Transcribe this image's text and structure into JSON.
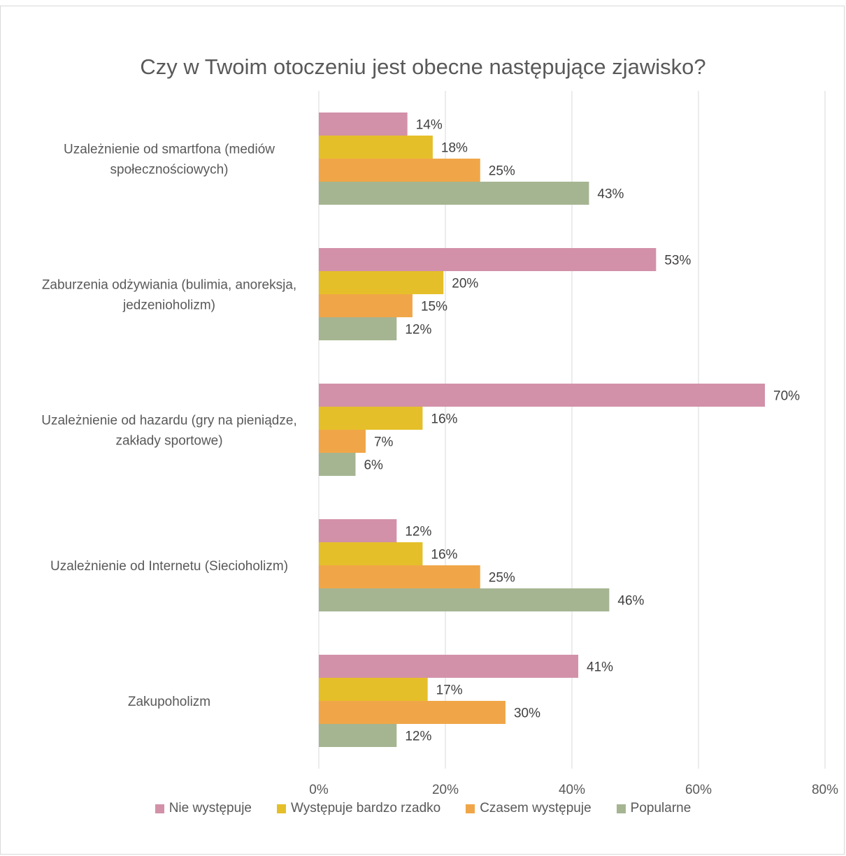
{
  "chart_data": {
    "type": "bar",
    "orientation": "horizontal",
    "title": "Czy w Twoim otoczeniu jest obecne następujące zjawisko?",
    "xlabel": "",
    "ylabel": "",
    "xlim": [
      0,
      0.8
    ],
    "x_ticks": [
      0,
      0.2,
      0.4,
      0.6,
      0.8
    ],
    "x_tick_labels": [
      "0%",
      "20%",
      "40%",
      "60%",
      "80%"
    ],
    "grid": true,
    "legend_position": "bottom",
    "categories": [
      [
        "Uzależnienie od smartfona (mediów",
        "społecznościowych)"
      ],
      [
        "Zaburzenia odżywiania (bulimia, anoreksja,",
        "jedzenioholizm)"
      ],
      [
        "Uzależnienie od hazardu (gry na pieniądze,",
        "zakłady sportowe)"
      ],
      [
        "Uzależnienie od Internetu (Siecioholizm)"
      ],
      [
        "Zakupoholizm"
      ]
    ],
    "series": [
      {
        "name": "Nie występuje",
        "color": "#d291a8",
        "values": [
          0.14,
          0.533,
          0.705,
          0.123,
          0.41
        ],
        "labels": [
          "14%",
          "53%",
          "70%",
          "12%",
          "41%"
        ]
      },
      {
        "name": "Występuje bardzo rzadko",
        "color": "#e5bf29",
        "values": [
          0.18,
          0.197,
          0.164,
          0.164,
          0.172
        ],
        "labels": [
          "18%",
          "20%",
          "16%",
          "16%",
          "17%"
        ]
      },
      {
        "name": "Czasem występuje",
        "color": "#f0a648",
        "values": [
          0.255,
          0.148,
          0.074,
          0.255,
          0.295
        ],
        "labels": [
          "25%",
          "15%",
          "7%",
          "25%",
          "30%"
        ]
      },
      {
        "name": "Popularne",
        "color": "#a5b592",
        "values": [
          0.427,
          0.123,
          0.058,
          0.459,
          0.123
        ],
        "labels": [
          "43%",
          "12%",
          "6%",
          "46%",
          "12%"
        ]
      }
    ]
  }
}
